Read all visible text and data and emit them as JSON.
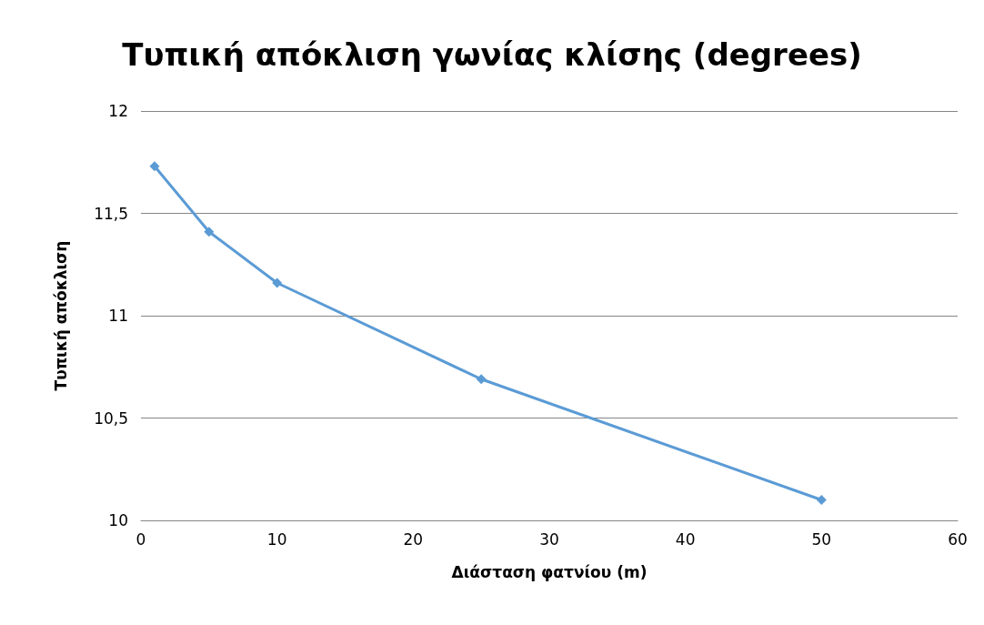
{
  "chart_data": {
    "type": "line",
    "title": "Τυπική απόκλιση γωνίας κλίσης (degrees)",
    "xlabel": "Διάσταση φατνίου (m)",
    "ylabel": "Τυπική απόκλιση",
    "x": [
      1,
      5,
      10,
      25,
      50
    ],
    "series": [
      {
        "color": "#5b9bd5",
        "values": [
          11.73,
          11.41,
          11.16,
          10.69,
          10.1
        ]
      }
    ],
    "xlim": [
      0,
      60
    ],
    "xticks": [
      0,
      10,
      20,
      30,
      40,
      50,
      60
    ],
    "ylim": [
      10,
      12
    ],
    "yticks": [
      10,
      {
        "value": 10.5,
        "label": "10,5"
      },
      11,
      {
        "value": 11.5,
        "label": "11,5"
      },
      12
    ],
    "grid": "y",
    "marker": "diamond",
    "line_style": "solid"
  }
}
